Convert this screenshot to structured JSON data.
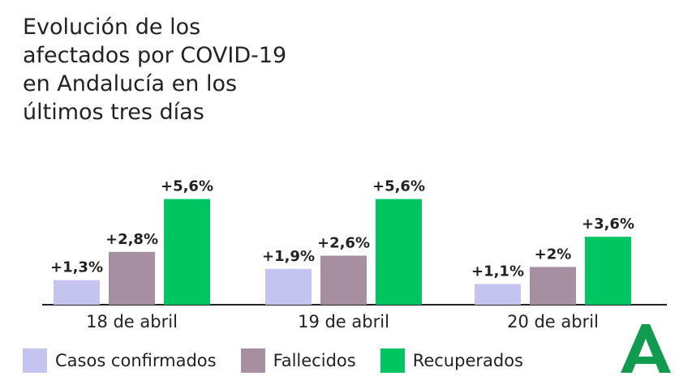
{
  "title": "Evolución de los\nafectados por COVID-19\nen Andalucía en los\núltimos tres días",
  "colors": {
    "casos": "#c5c3ef",
    "fallecidos": "#a58fa0",
    "recuperados": "#00c560",
    "axis": "#222222",
    "text": "#222222",
    "logo": "#119b4f"
  },
  "chart_data": {
    "type": "bar",
    "categories": [
      "18 de abril",
      "19 de abril",
      "20 de abril"
    ],
    "series": [
      {
        "name": "Casos confirmados",
        "values": [
          1.3,
          1.9,
          1.1
        ],
        "labels": [
          "+1,3%",
          "+1,9%",
          "+1,1%"
        ]
      },
      {
        "name": "Fallecidos",
        "values": [
          2.8,
          2.6,
          2.0
        ],
        "labels": [
          "+2,8%",
          "+2,6%",
          "+2%"
        ]
      },
      {
        "name": "Recuperados",
        "values": [
          5.6,
          5.6,
          3.6
        ],
        "labels": [
          "+5,6%",
          "+5,6%",
          "+3,6%"
        ]
      }
    ],
    "ylim": [
      0,
      6.7
    ],
    "grid": false,
    "legend_position": "bottom"
  },
  "legend": [
    {
      "label": "Casos confirmados",
      "color_key": "casos"
    },
    {
      "label": "Fallecidos",
      "color_key": "fallecidos"
    },
    {
      "label": "Recuperados",
      "color_key": "recuperados"
    }
  ],
  "logo": {
    "icon": "junta-andalucia-logo"
  }
}
